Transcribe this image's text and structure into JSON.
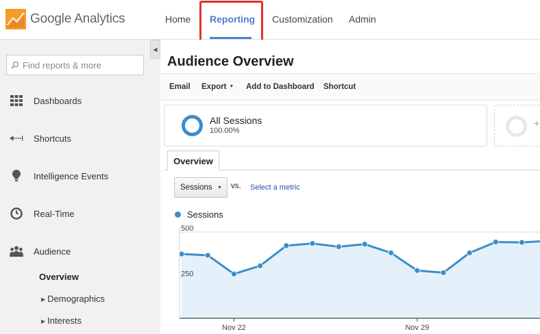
{
  "app": {
    "brand": "Google Analytics"
  },
  "nav": {
    "home": "Home",
    "reporting": "Reporting",
    "customization": "Customization",
    "admin": "Admin"
  },
  "colors": {
    "accent": "#4a7fd1",
    "highlight": "#e0332c",
    "series": "#3b8ec9",
    "area": "#e4f1fa"
  },
  "sidebar": {
    "search_placeholder": "Find reports & more",
    "items": [
      {
        "label": "Dashboards",
        "icon": "dashboard-grid-icon"
      },
      {
        "label": "Shortcuts",
        "icon": "shortcut-arrow-icon"
      },
      {
        "label": "Intelligence Events",
        "icon": "lightbulb-icon"
      },
      {
        "label": "Real-Time",
        "icon": "clock-icon"
      },
      {
        "label": "Audience",
        "icon": "people-icon"
      }
    ],
    "sub_items": [
      {
        "label": "Overview",
        "active": true
      },
      {
        "label": "Demographics"
      },
      {
        "label": "Interests"
      }
    ]
  },
  "main": {
    "title": "Audience Overview",
    "actions": {
      "email": "Email",
      "export": "Export",
      "add_to_dashboard": "Add to Dashboard",
      "shortcut": "Shortcut"
    },
    "segment": {
      "name": "All Sessions",
      "percent": "100.00%"
    },
    "tab": "Overview",
    "metric_select": "Sessions",
    "vs": "vs.",
    "select_metric": "Select a metric",
    "legend": "Sessions"
  },
  "chart_data": {
    "type": "area",
    "series": [
      {
        "name": "Sessions",
        "values": [
          379,
          372,
          269,
          314,
          425,
          437,
          419,
          433,
          385,
          288,
          276,
          385,
          445,
          443,
          451
        ]
      }
    ],
    "y_ticks": [
      "500",
      "250"
    ],
    "x_ticks": [
      {
        "label": "Nov 22",
        "index": 2
      },
      {
        "label": "Nov 29",
        "index": 9
      }
    ],
    "ylim": [
      25,
      500
    ]
  }
}
